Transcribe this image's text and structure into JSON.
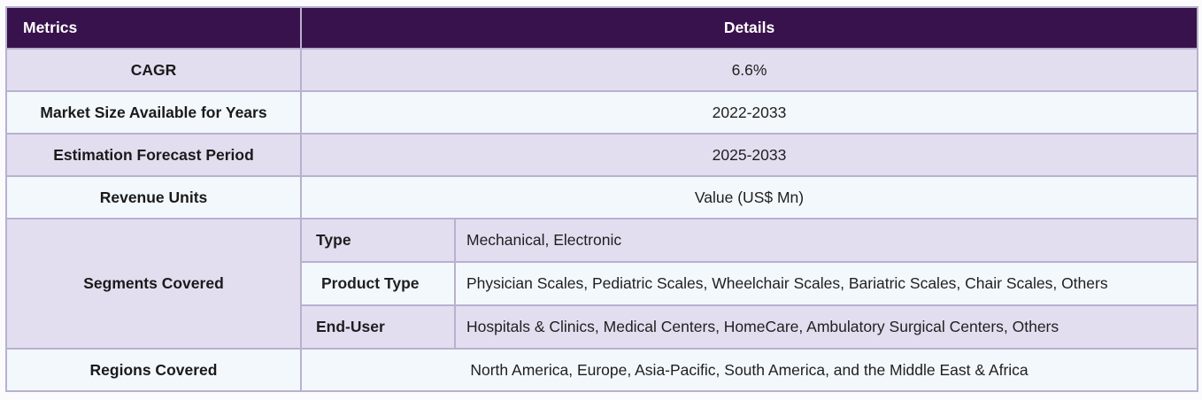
{
  "header": {
    "metrics_label": "Metrics",
    "details_label": "Details"
  },
  "rows": [
    {
      "metric": "CAGR",
      "value": "6.6%"
    },
    {
      "metric": "Market Size Available for Years",
      "value": "2022-2033"
    },
    {
      "metric": "Estimation Forecast Period",
      "value": "2025-2033"
    },
    {
      "metric": "Revenue Units",
      "value": "Value (US$ Mn)"
    }
  ],
  "segments": {
    "label": "Segments Covered",
    "items": [
      {
        "name": "Type",
        "value": "Mechanical, Electronic"
      },
      {
        "name": "Product Type",
        "value": "Physician Scales, Pediatric Scales, Wheelchair Scales, Bariatric Scales, Chair Scales, Others"
      },
      {
        "name": "End-User",
        "value": "Hospitals & Clinics, Medical Centers, HomeCare, Ambulatory Surgical Centers, Others"
      }
    ]
  },
  "regions": {
    "label": "Regions Covered",
    "value": "North America, Europe, Asia-Pacific, South America, and the Middle East & Africa"
  },
  "colors": {
    "header_bg": "#38124c",
    "row_shaded": "#e2def0",
    "row_light": "#f3f8fc",
    "border": "#b8b1cf"
  }
}
